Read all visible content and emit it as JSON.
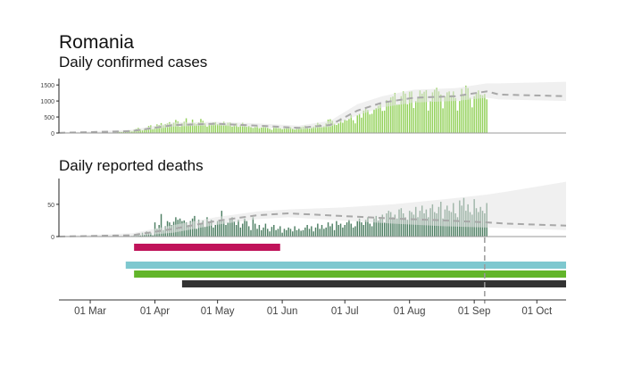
{
  "title": "Romania",
  "chart_data": [
    {
      "type": "bar",
      "title": "Daily confirmed cases",
      "x_origin": "01 Mar",
      "x_unit": "days since 01 Mar",
      "xlim": [
        -15,
        228
      ],
      "ylim": [
        0,
        1700
      ],
      "yticks": [
        0,
        500,
        1000,
        1500
      ],
      "color": "#93d15a",
      "values": [
        0,
        0,
        1,
        0,
        1,
        0,
        1,
        2,
        4,
        5,
        10,
        13,
        20,
        25,
        40,
        35,
        60,
        30,
        60,
        80,
        60,
        100,
        130,
        160,
        120,
        90,
        130,
        110,
        220,
        240,
        120,
        200,
        270,
        250,
        310,
        240,
        280,
        300,
        340,
        280,
        320,
        410,
        360,
        200,
        300,
        350,
        460,
        240,
        300,
        420,
        300,
        280,
        330,
        440,
        380,
        300,
        200,
        250,
        300,
        330,
        340,
        280,
        300,
        250,
        350,
        260,
        320,
        330,
        200,
        280,
        300,
        190,
        250,
        320,
        260,
        200,
        220,
        180,
        160,
        190,
        220,
        150,
        170,
        210,
        190,
        160,
        130,
        100,
        180,
        200,
        160,
        150,
        120,
        140,
        160,
        150,
        180,
        130,
        110,
        160,
        170,
        180,
        200,
        230,
        180,
        140,
        160,
        200,
        250,
        320,
        280,
        190,
        210,
        300,
        420,
        430,
        380,
        290,
        250,
        300,
        460,
        320,
        420,
        390,
        440,
        560,
        400,
        300,
        550,
        600,
        480,
        700,
        760,
        720,
        580,
        600,
        730,
        780,
        850,
        900,
        690,
        700,
        1030,
        1000,
        1110,
        1140,
        1250,
        890,
        890,
        1150,
        1300,
        1230,
        900,
        1290,
        1300,
        780,
        1000,
        1120,
        1330,
        1230,
        1290,
        1340,
        700,
        1000,
        1270,
        1350,
        1410,
        1300,
        1200,
        770,
        1140,
        1270,
        1300,
        1180,
        1300,
        1090,
        700,
        1000,
        1380,
        1200,
        1480,
        1400,
        1100,
        800,
        1150,
        1250,
        1330,
        1200,
        1180,
        1220,
        1050
      ],
      "fit": [
        [
          -15,
          5,
          0,
          15
        ],
        [
          20,
          60,
          30,
          100
        ],
        [
          40,
          250,
          200,
          330
        ],
        [
          60,
          290,
          240,
          350
        ],
        [
          80,
          230,
          170,
          300
        ],
        [
          100,
          160,
          110,
          230
        ],
        [
          115,
          250,
          190,
          380
        ],
        [
          128,
          700,
          550,
          900
        ],
        [
          140,
          950,
          800,
          1150
        ],
        [
          155,
          1100,
          950,
          1350
        ],
        [
          175,
          1150,
          1000,
          1400
        ],
        [
          190,
          1300,
          1100,
          1550
        ],
        [
          196,
          1200,
          1050,
          1550
        ],
        [
          228,
          1150,
          1000,
          1600
        ]
      ]
    },
    {
      "type": "bar",
      "title": "Daily reported deaths",
      "x_origin": "01 Mar",
      "x_unit": "days since 01 Mar",
      "xlim": [
        -15,
        228
      ],
      "ylim": [
        0,
        90
      ],
      "yticks": [
        0,
        50
      ],
      "color": "#4e7f63",
      "values": [
        0,
        0,
        0,
        0,
        0,
        0,
        0,
        0,
        0,
        0,
        0,
        0,
        0,
        0,
        0,
        0,
        0,
        0,
        0,
        0,
        1,
        2,
        3,
        4,
        2,
        6,
        3,
        8,
        5,
        6,
        2,
        22,
        12,
        18,
        35,
        10,
        16,
        24,
        22,
        18,
        23,
        30,
        26,
        28,
        24,
        25,
        22,
        18,
        24,
        28,
        32,
        12,
        26,
        20,
        25,
        15,
        30,
        22,
        26,
        14,
        18,
        24,
        26,
        40,
        24,
        18,
        22,
        28,
        30,
        24,
        18,
        26,
        14,
        20,
        28,
        24,
        16,
        10,
        30,
        20,
        12,
        18,
        10,
        14,
        20,
        12,
        8,
        15,
        18,
        10,
        12,
        16,
        6,
        12,
        10,
        14,
        12,
        8,
        16,
        10,
        12,
        9,
        10,
        14,
        18,
        12,
        16,
        8,
        14,
        20,
        12,
        18,
        12,
        14,
        22,
        16,
        20,
        10,
        24,
        18,
        20,
        14,
        18,
        22,
        26,
        20,
        14,
        16,
        24,
        28,
        22,
        18,
        26,
        30,
        20,
        16,
        28,
        32,
        25,
        30,
        34,
        22,
        36,
        40,
        38,
        30,
        34,
        28,
        42,
        44,
        36,
        30,
        26,
        40,
        38,
        34,
        46,
        30,
        40,
        48,
        36,
        42,
        30,
        44,
        50,
        38,
        36,
        46,
        54,
        28,
        42,
        48,
        40,
        38,
        52,
        36,
        30,
        56,
        48,
        60,
        40,
        50,
        38,
        34,
        58,
        44,
        38,
        46,
        40,
        36,
        52
      ],
      "fit": [
        [
          -15,
          0,
          0,
          1
        ],
        [
          20,
          2,
          0,
          5
        ],
        [
          40,
          12,
          6,
          18
        ],
        [
          60,
          24,
          18,
          30
        ],
        [
          80,
          33,
          27,
          39
        ],
        [
          95,
          36,
          30,
          42
        ],
        [
          120,
          32,
          25,
          45
        ],
        [
          145,
          28,
          20,
          50
        ],
        [
          170,
          25,
          16,
          58
        ],
        [
          190,
          22,
          14,
          65
        ],
        [
          200,
          20,
          13,
          70
        ],
        [
          228,
          17,
          10,
          85
        ]
      ]
    }
  ],
  "timeline": [
    {
      "start": 21,
      "end": 91,
      "color": "#c0135a"
    },
    {
      "start": 17,
      "end": 228,
      "color": "#7ec8cf"
    },
    {
      "start": 21,
      "end": 228,
      "color": "#62b52a"
    },
    {
      "start": 44,
      "end": 228,
      "color": "#333333"
    }
  ],
  "forecast_start_day": 189,
  "xticks": [
    {
      "day": 0,
      "label": "01 Mar"
    },
    {
      "day": 31,
      "label": "01 Apr"
    },
    {
      "day": 61,
      "label": "01 May"
    },
    {
      "day": 92,
      "label": "01 Jun"
    },
    {
      "day": 122,
      "label": "01 Jul"
    },
    {
      "day": 153,
      "label": "01 Aug"
    },
    {
      "day": 184,
      "label": "01 Sep"
    },
    {
      "day": 214,
      "label": "01 Oct"
    }
  ]
}
